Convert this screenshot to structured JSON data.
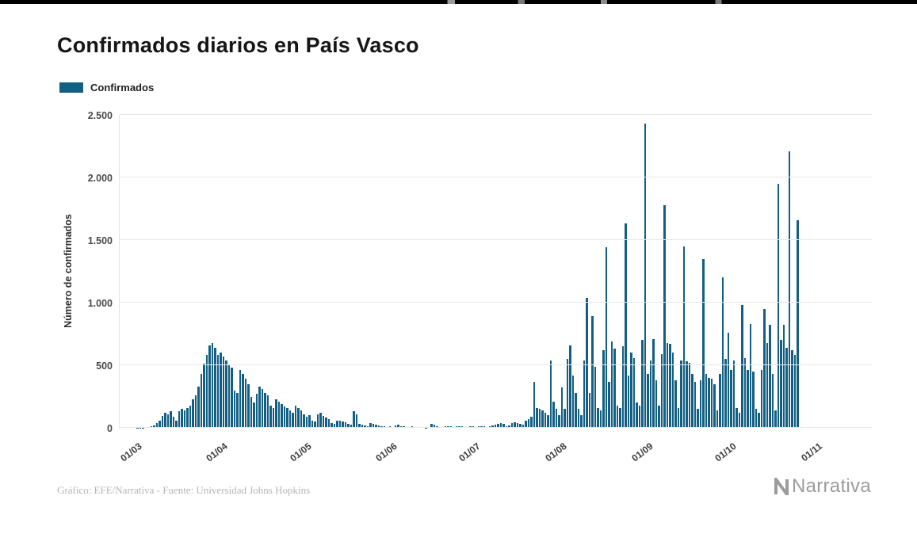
{
  "header": {
    "title": "Confirmados diarios en País Vasco"
  },
  "legend": {
    "label": "Confirmados",
    "color": "#135f84"
  },
  "footer": {
    "credit": "Gráfico: EFE/Narrativa - Fuente: Universidad Johns Hopkins",
    "brand": "Narrativa"
  },
  "chart_data": {
    "type": "bar",
    "title": "Confirmados diarios en País Vasco",
    "xlabel": "",
    "ylabel": "Número de confirmados",
    "ylim": [
      0,
      2500
    ],
    "grid": true,
    "legend_position": "top-left",
    "bar_color": "#135f84",
    "y_tick_values": [
      0,
      500,
      1000,
      1500,
      2000,
      2500
    ],
    "y_tick_labels": [
      "0",
      "500",
      "1.000",
      "1.500",
      "2.000",
      "2.500"
    ],
    "x_tick_labels": [
      "01/03",
      "01/04",
      "01/05",
      "01/06",
      "01/07",
      "01/08",
      "01/09",
      "01/10",
      "01/11"
    ],
    "x_tick_day_offsets": [
      0,
      31,
      61,
      92,
      122,
      153,
      184,
      214,
      245
    ],
    "x_domain": {
      "pre_padding_days": 6,
      "total_slots": 271
    },
    "series": [
      {
        "name": "Confirmados",
        "start_date_label": "01/03",
        "frequency": "daily",
        "values": [
          2,
          3,
          2,
          5,
          8,
          12,
          20,
          35,
          60,
          95,
          120,
          110,
          130,
          90,
          60,
          130,
          150,
          140,
          160,
          180,
          230,
          260,
          330,
          430,
          510,
          580,
          660,
          676,
          640,
          580,
          600,
          570,
          540,
          500,
          480,
          300,
          280,
          460,
          430,
          390,
          350,
          250,
          200,
          270,
          330,
          310,
          280,
          260,
          180,
          160,
          230,
          210,
          190,
          170,
          160,
          140,
          120,
          180,
          160,
          140,
          110,
          90,
          100,
          60,
          50,
          110,
          120,
          95,
          80,
          70,
          40,
          30,
          60,
          55,
          50,
          45,
          30,
          25,
          130,
          110,
          30,
          25,
          20,
          15,
          35,
          30,
          25,
          20,
          15,
          10,
          8,
          10,
          5,
          20,
          25,
          15,
          10,
          8,
          5,
          10,
          8,
          6,
          5,
          4,
          3,
          5,
          30,
          25,
          10,
          8,
          5,
          15,
          12,
          10,
          8,
          15,
          12,
          10,
          8,
          6,
          10,
          12,
          8,
          10,
          12,
          10,
          8,
          15,
          20,
          25,
          30,
          35,
          30,
          15,
          20,
          40,
          45,
          35,
          30,
          25,
          60,
          70,
          90,
          370,
          160,
          150,
          140,
          120,
          100,
          540,
          210,
          150,
          100,
          320,
          150,
          550,
          660,
          420,
          280,
          150,
          100,
          540,
          1040,
          280,
          890,
          490,
          160,
          140,
          620,
          1440,
          370,
          690,
          630,
          180,
          160,
          650,
          1630,
          420,
          600,
          560,
          200,
          180,
          700,
          2430,
          430,
          540,
          710,
          380,
          180,
          590,
          1780,
          680,
          670,
          600,
          380,
          160,
          540,
          1450,
          530,
          520,
          430,
          370,
          150,
          380,
          1350,
          430,
          400,
          390,
          350,
          140,
          430,
          1200,
          550,
          760,
          460,
          540,
          160,
          120,
          980,
          560,
          460,
          830,
          450,
          150,
          120,
          460,
          950,
          680,
          820,
          430,
          140,
          1950,
          700,
          820,
          640,
          2210,
          620,
          580,
          1660
        ]
      }
    ]
  }
}
